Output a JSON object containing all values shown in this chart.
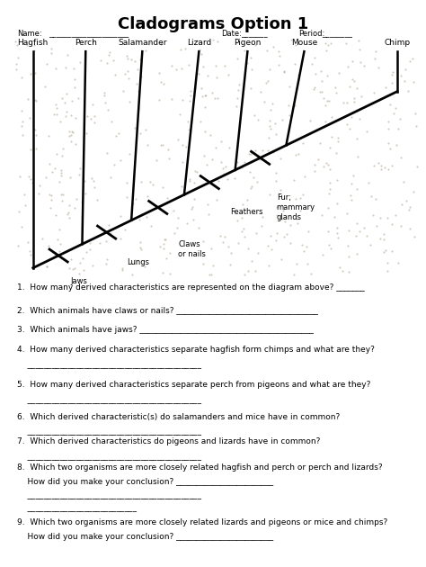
{
  "title": "Cladograms Option 1",
  "title_fontsize": 13,
  "title_fontweight": "bold",
  "bg_color": "#ffffff",
  "animals": [
    "Hagfish",
    "Perch",
    "Salamander",
    "Lizard",
    "Pigeon",
    "Mouse",
    "Chimp"
  ],
  "traits": [
    "Jaws",
    "Lungs",
    "Claws\nor nails",
    "Feathers",
    "Fur;\nmammary\nglands"
  ],
  "questions": [
    "1.  How many derived characteristics are represented on the diagram above? _______",
    "2.  Which animals have claws or nails? ___________________________________",
    "3.  Which animals have jaws? ___________________________________________",
    "4.  How many derived characteristics separate hagfish form chimps and what are they?",
    "5.  How many derived characteristics separate perch from pigeons and what are they?",
    "6.  Which derived characteristic(s) do salamanders and mice have in common?",
    "7.  Which derived characteristics do pigeons and lizards have in common?",
    "8.  Which two organisms are more closely related hagfish and perch or perch and lizards?\n    How did you make your conclusion? ________________________",
    "9.  Which two organisms are more closely related lizards and pigeons or mice and chimps?\n    How did you make your conclusion? ________________________"
  ],
  "q4_line": "    ___________________________________________",
  "q5_line": "    ___________________________________________",
  "q6_line": "    ___________________________________________",
  "q7_line": "    ___________________________________________",
  "q8_lines": [
    "    ___________________________________________",
    "    ___________________________"
  ],
  "line_color": "#000000",
  "text_color": "#000000",
  "diagram_bg": "#ccc0aa"
}
